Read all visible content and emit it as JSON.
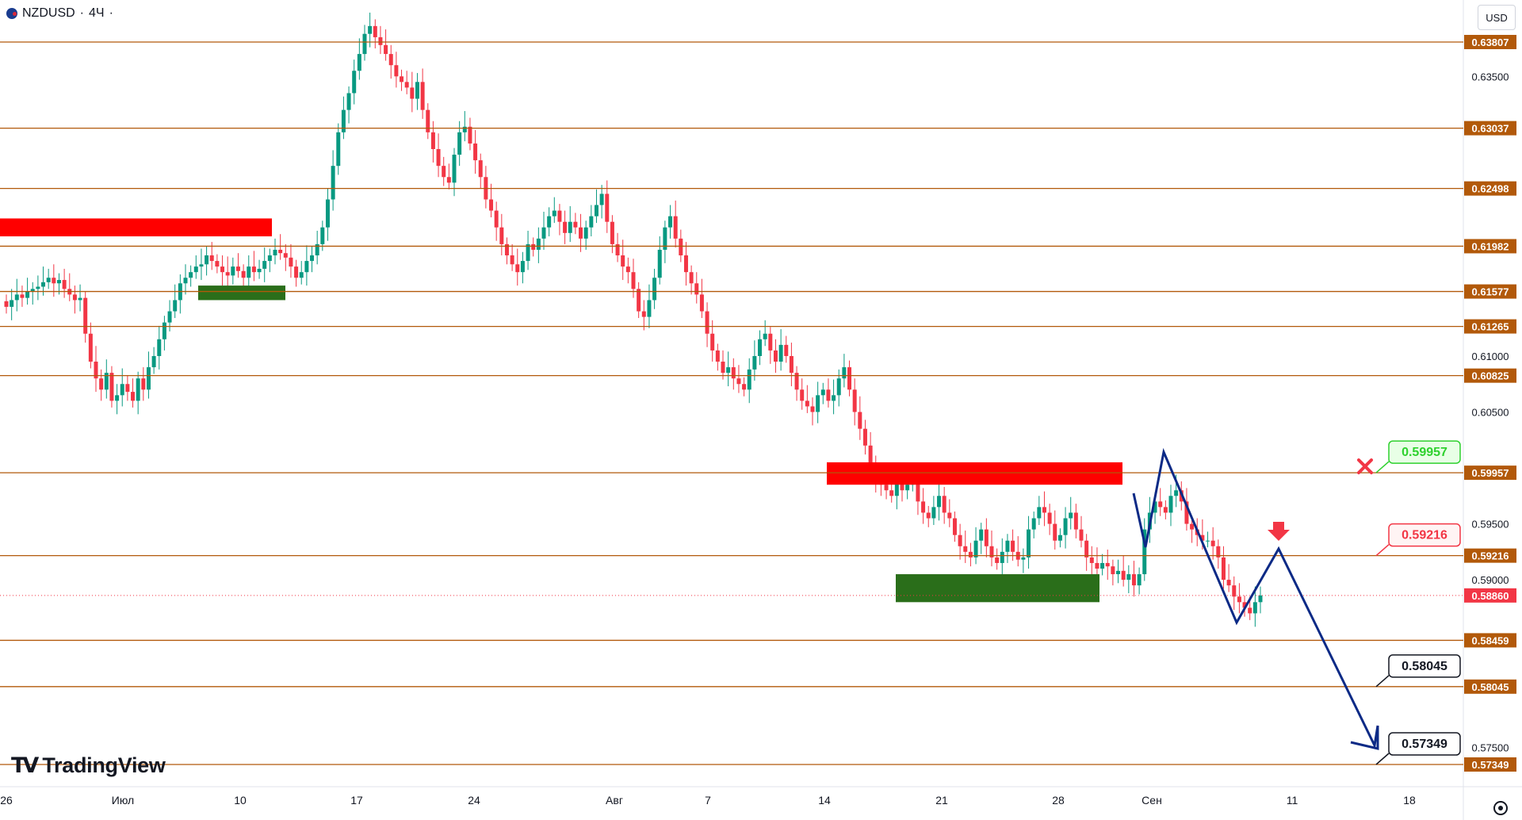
{
  "header": {
    "symbol": "NZDUSD",
    "separator": "·",
    "interval": "4Ч",
    "dot": "·",
    "currency": "USD"
  },
  "branding": {
    "logo_text": "TradingView",
    "logo_mark": "TV"
  },
  "colors": {
    "up": "#089981",
    "down": "#f23645",
    "level": "#b2590a",
    "label_bg": "#b2590a",
    "zigzag": "#0c2a86",
    "red_zone": "#ff0000",
    "green_zone": "#2a6e1a"
  },
  "chart_data": {
    "type": "candlestick",
    "y_axis": {
      "min": 0.57,
      "max": 0.6405,
      "ticks": [
        "0.63500",
        "0.61000",
        "0.60500",
        "0.59500",
        "0.59000",
        "0.57500"
      ]
    },
    "x_axis": {
      "labels": [
        "26",
        "Июл",
        "10",
        "17",
        "24",
        "Авг",
        "7",
        "14",
        "21",
        "28",
        "Сен",
        "11",
        "18"
      ]
    },
    "levels": [
      {
        "value": 0.63807,
        "label": "0.63807"
      },
      {
        "value": 0.63037,
        "label": "0.63037"
      },
      {
        "value": 0.62498,
        "label": "0.62498"
      },
      {
        "value": 0.61982,
        "label": "0.61982"
      },
      {
        "value": 0.61577,
        "label": "0.61577"
      },
      {
        "value": 0.61265,
        "label": "0.61265"
      },
      {
        "value": 0.60825,
        "label": "0.60825"
      },
      {
        "value": 0.59957,
        "label": "0.59957"
      },
      {
        "value": 0.59216,
        "label": "0.59216"
      },
      {
        "value": 0.58459,
        "label": "0.58459"
      },
      {
        "value": 0.58045,
        "label": "0.58045"
      },
      {
        "value": 0.57349,
        "label": "0.57349"
      }
    ],
    "current_price": {
      "value": 0.5886,
      "label": "0.58860"
    },
    "callouts": [
      {
        "value": 0.59957,
        "label": "0.59957",
        "style": "invalidated"
      },
      {
        "value": 0.59216,
        "label": "0.59216",
        "style": "entry"
      },
      {
        "value": 0.58045,
        "label": "0.58045",
        "style": "target"
      },
      {
        "value": 0.57349,
        "label": "0.57349",
        "style": "target"
      }
    ],
    "series_close": [
      0.6144,
      0.615,
      0.6155,
      0.6152,
      0.6158,
      0.616,
      0.6162,
      0.6166,
      0.617,
      0.6165,
      0.6168,
      0.616,
      0.6155,
      0.615,
      0.6152,
      0.612,
      0.6095,
      0.608,
      0.607,
      0.6085,
      0.606,
      0.6065,
      0.6075,
      0.6068,
      0.606,
      0.608,
      0.607,
      0.609,
      0.61,
      0.6115,
      0.613,
      0.614,
      0.615,
      0.6165,
      0.617,
      0.6175,
      0.618,
      0.6182,
      0.619,
      0.6185,
      0.618,
      0.6175,
      0.6172,
      0.618,
      0.6176,
      0.617,
      0.618,
      0.6175,
      0.6178,
      0.6185,
      0.619,
      0.6195,
      0.6192,
      0.6188,
      0.618,
      0.617,
      0.6175,
      0.6185,
      0.619,
      0.62,
      0.6215,
      0.624,
      0.627,
      0.63,
      0.632,
      0.6335,
      0.6355,
      0.637,
      0.6388,
      0.6395,
      0.6385,
      0.6378,
      0.637,
      0.636,
      0.635,
      0.6345,
      0.634,
      0.633,
      0.6345,
      0.632,
      0.63,
      0.6285,
      0.627,
      0.626,
      0.6255,
      0.628,
      0.63,
      0.6305,
      0.629,
      0.6275,
      0.626,
      0.624,
      0.623,
      0.6215,
      0.62,
      0.619,
      0.6182,
      0.6175,
      0.6185,
      0.62,
      0.6195,
      0.6205,
      0.6215,
      0.6225,
      0.623,
      0.622,
      0.621,
      0.622,
      0.6215,
      0.6205,
      0.6215,
      0.6225,
      0.6235,
      0.6245,
      0.622,
      0.62,
      0.619,
      0.618,
      0.6175,
      0.616,
      0.614,
      0.6135,
      0.615,
      0.617,
      0.6195,
      0.6215,
      0.6225,
      0.6205,
      0.619,
      0.6175,
      0.6165,
      0.6155,
      0.614,
      0.612,
      0.6105,
      0.6095,
      0.6085,
      0.609,
      0.608,
      0.6075,
      0.607,
      0.6088,
      0.61,
      0.6115,
      0.612,
      0.6105,
      0.6095,
      0.611,
      0.61,
      0.6085,
      0.607,
      0.606,
      0.6055,
      0.605,
      0.6065,
      0.607,
      0.606,
      0.6065,
      0.608,
      0.609,
      0.607,
      0.605,
      0.6035,
      0.602,
      0.6005,
      0.599,
      0.5985,
      0.598,
      0.5975,
      0.599,
      0.598,
      0.5985,
      0.599,
      0.597,
      0.596,
      0.5955,
      0.5965,
      0.5975,
      0.596,
      0.5955,
      0.594,
      0.593,
      0.5925,
      0.592,
      0.5935,
      0.5945,
      0.593,
      0.592,
      0.5915,
      0.5925,
      0.5935,
      0.5925,
      0.5918,
      0.592,
      0.5945,
      0.5955,
      0.5965,
      0.596,
      0.595,
      0.5935,
      0.594,
      0.5955,
      0.596,
      0.5945,
      0.5935,
      0.592,
      0.5915,
      0.591,
      0.5915,
      0.5912,
      0.5905,
      0.5908,
      0.59,
      0.5905,
      0.5895,
      0.5905,
      0.5945,
      0.596,
      0.597,
      0.5965,
      0.596,
      0.5975,
      0.598,
      0.597,
      0.595,
      0.5945,
      0.594,
      0.5935,
      0.5935,
      0.593,
      0.592,
      0.59,
      0.5895,
      0.5885,
      0.588,
      0.5875,
      0.587,
      0.588,
      0.5886
    ]
  }
}
